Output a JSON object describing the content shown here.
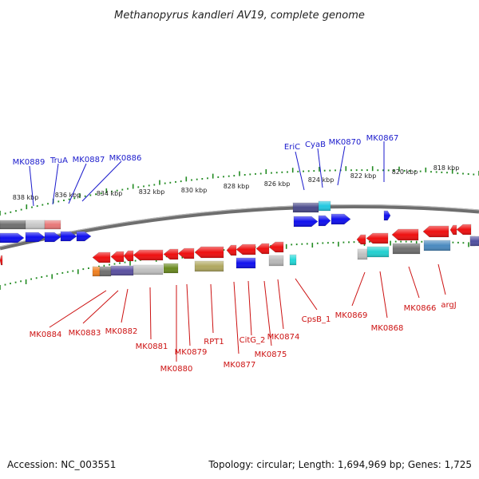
{
  "title": "Methanopyrus kandleri AV19, complete genome",
  "footer": {
    "accession": "Accession: NC_003551",
    "summary": "Topology: circular; Length: 1,694,969 bp; Genes: 1,725"
  },
  "colors": {
    "forward_label": "#1a1acc",
    "reverse_label": "#cc1111",
    "tick": "#228b22",
    "backbone": "#777777"
  },
  "scale_ticks": [
    "838 kbp",
    "836 kbp",
    "834 kbp",
    "832 kbp",
    "830 kbp",
    "828 kbp",
    "826 kbp",
    "824 kbp",
    "822 kbp",
    "820 kbp",
    "818 kbp"
  ],
  "forward_genes": [
    "MK0889",
    "TruA",
    "MK0887",
    "MK0886",
    "EriC",
    "CyaB",
    "MK0870",
    "MK0867"
  ],
  "reverse_genes": [
    "MK0884",
    "MK0883",
    "MK0882",
    "MK0881",
    "MK0880",
    "MK0879",
    "RPT1",
    "MK0877",
    "CitG_2",
    "MK0875",
    "MK0874",
    "CpsB_1",
    "MK0869",
    "MK0868",
    "MK0866",
    "argJ"
  ]
}
